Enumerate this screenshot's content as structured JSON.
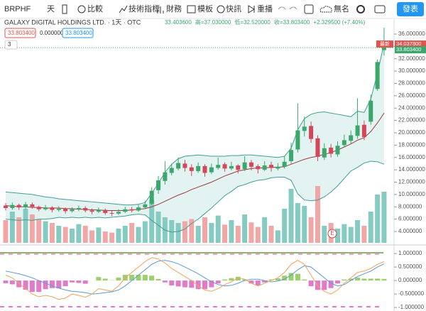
{
  "toolbar": {
    "symbol": "BRPHF",
    "interval": "天",
    "compare": "比較",
    "indicators": "技術指標",
    "financials": "財務",
    "templates": "模板",
    "alerts": "快訊",
    "replay": "重播",
    "layout_name": "無名",
    "publish": "發表"
  },
  "legend": {
    "title": "GALAXY DIGITAL HOLDINGS LTD. · 1天 · OTC",
    "ohlc": [
      "33.403600",
      "高=37.030000",
      "低=32.520000",
      "收=33.803400",
      "+2.329500 (+7.40%)"
    ],
    "indicator_values": [
      "33.803400",
      "0.000000",
      "33.803400"
    ],
    "collapse": "3"
  },
  "chart_data": [
    {
      "type": "candlestick",
      "up_color": "#3ba76c",
      "down_color": "#d6455a",
      "volume_up_color": "#86cbc2",
      "volume_down_color": "#f2a7a7",
      "open": [
        8.2,
        7.8,
        8.3,
        7.9,
        8.4,
        8.0,
        7.6,
        7.9,
        7.5,
        7.7,
        7.3,
        7.6,
        7.8,
        7.4,
        7.2,
        7.5,
        7.0,
        6.9,
        7.2,
        7.6,
        7.4,
        7.9,
        8.5,
        10.7,
        12.2,
        13.5,
        14.2,
        15.0,
        14.4,
        13.8,
        14.6,
        13.6,
        14.3,
        14.9,
        14.2,
        14.7,
        14.1,
        15.2,
        14.6,
        14.0,
        14.8,
        14.2,
        14.5,
        15.4,
        17.3,
        20.3,
        21.1,
        19.1,
        16.0,
        17.6,
        16.5,
        18.0,
        18.7,
        19.5,
        21.3,
        21.8,
        27.1,
        33.4036
      ],
      "high": [
        8.6,
        8.7,
        8.5,
        8.8,
        8.7,
        8.2,
        8.3,
        8.1,
        8.1,
        7.9,
        7.9,
        8.2,
        8.1,
        7.7,
        7.9,
        7.7,
        7.4,
        7.6,
        8.0,
        8.0,
        8.3,
        9.0,
        11.2,
        13.0,
        15.4,
        15.0,
        16.0,
        15.6,
        14.9,
        15.2,
        14.9,
        15.0,
        16.0,
        15.2,
        15.3,
        14.9,
        16.2,
        15.6,
        14.9,
        15.4,
        15.3,
        15.1,
        16.2,
        18.4,
        24.8,
        22.6,
        21.8,
        19.6,
        18.3,
        18.2,
        18.6,
        19.7,
        20.4,
        25.6,
        22.0,
        26.2,
        31.9,
        37.03
      ],
      "low": [
        7.4,
        7.5,
        7.5,
        7.6,
        7.7,
        7.3,
        7.4,
        7.1,
        7.2,
        6.9,
        7.1,
        7.3,
        7.1,
        6.8,
        7.0,
        6.7,
        6.5,
        6.7,
        7.0,
        7.1,
        7.2,
        7.7,
        8.3,
        10.1,
        11.6,
        13.1,
        13.9,
        13.7,
        13.0,
        13.5,
        12.9,
        13.3,
        14.0,
        13.7,
        13.9,
        13.4,
        13.8,
        13.9,
        13.4,
        13.8,
        13.7,
        13.9,
        14.2,
        15.0,
        16.8,
        19.4,
        18.4,
        15.4,
        15.6,
        16.0,
        16.1,
        17.6,
        18.2,
        19.0,
        18.8,
        21.3,
        26.8,
        32.52
      ],
      "close": [
        7.8,
        8.3,
        7.9,
        8.4,
        8.0,
        7.6,
        7.9,
        7.5,
        7.7,
        7.3,
        7.6,
        7.8,
        7.4,
        7.2,
        7.5,
        7.0,
        6.9,
        7.2,
        7.6,
        7.4,
        7.9,
        8.4,
        10.6,
        12.3,
        13.6,
        14.3,
        15.1,
        14.3,
        13.8,
        14.6,
        13.5,
        14.4,
        14.8,
        14.2,
        14.6,
        14.0,
        15.2,
        14.5,
        14.1,
        14.7,
        14.3,
        14.5,
        15.3,
        17.2,
        20.4,
        21.0,
        19.0,
        16.1,
        17.5,
        16.6,
        17.9,
        18.8,
        19.6,
        21.2,
        19.3,
        25.2,
        31.4739,
        33.8034
      ],
      "volume": [
        40,
        55,
        45,
        60,
        50,
        42,
        38,
        35,
        30,
        28,
        25,
        33,
        30,
        22,
        27,
        20,
        18,
        25,
        30,
        35,
        28,
        38,
        75,
        55,
        45,
        40,
        35,
        38,
        42,
        30,
        45,
        35,
        48,
        32,
        40,
        30,
        50,
        36,
        28,
        45,
        30,
        22,
        60,
        95,
        70,
        65,
        45,
        100,
        30,
        35,
        25,
        33,
        28,
        40,
        30,
        55,
        85,
        90
      ],
      "series": [
        {
          "color": "#3f9f95",
          "values": [
            10.4,
            10.3,
            10.2,
            10.1,
            10.0,
            9.8,
            9.6,
            9.5,
            9.3,
            9.2,
            9.1,
            9.0,
            8.9,
            8.8,
            8.7,
            8.6,
            8.5,
            8.4,
            8.3,
            8.3,
            8.4,
            8.7,
            10.2,
            11.8,
            13.6,
            14.9,
            15.8,
            16.2,
            16.3,
            16.4,
            16.3,
            16.2,
            16.2,
            16.2,
            16.3,
            16.3,
            16.4,
            16.4,
            16.3,
            16.2,
            16.1,
            16.0,
            16.2,
            17.5,
            20.5,
            22.3,
            23.0,
            23.3,
            23.4,
            23.2,
            23.0,
            22.8,
            22.6,
            23.5,
            23.3,
            25.5,
            29.6,
            34.5
          ]
        },
        {
          "color": "#9b3c3c",
          "values": [
            8.2,
            8.1,
            8.0,
            8.0,
            7.9,
            7.9,
            7.8,
            7.8,
            7.8,
            7.7,
            7.7,
            7.6,
            7.6,
            7.5,
            7.5,
            7.4,
            7.4,
            7.4,
            7.4,
            7.5,
            7.6,
            7.7,
            8.0,
            8.4,
            8.9,
            9.4,
            9.9,
            10.3,
            10.8,
            11.2,
            11.6,
            12.0,
            12.5,
            13.0,
            13.4,
            13.8,
            14.0,
            14.2,
            14.3,
            14.3,
            14.4,
            14.4,
            14.5,
            14.9,
            15.3,
            15.7,
            16.0,
            16.2,
            16.5,
            16.8,
            17.2,
            17.7,
            18.2,
            18.8,
            19.2,
            20.2,
            21.6,
            23.2
          ]
        },
        {
          "color": "#3f9f95",
          "values": [
            6.0,
            5.9,
            5.8,
            5.9,
            5.8,
            6.0,
            6.0,
            6.1,
            6.3,
            6.2,
            6.3,
            6.2,
            6.3,
            6.2,
            6.3,
            6.2,
            6.3,
            6.4,
            6.5,
            6.7,
            6.8,
            6.7,
            5.8,
            5.0,
            4.2,
            3.9,
            4.0,
            4.4,
            5.3,
            6.0,
            6.9,
            7.8,
            8.8,
            9.8,
            10.5,
            11.3,
            11.6,
            12.0,
            12.3,
            12.4,
            12.7,
            12.8,
            12.8,
            12.3,
            10.1,
            9.1,
            9.0,
            9.1,
            9.6,
            10.4,
            11.4,
            12.6,
            13.8,
            14.4,
            15.1,
            15.4,
            15.3,
            14.9
          ]
        }
      ],
      "band_fill": "#e3f3f1",
      "ylim": [
        2.16,
        36.69
      ],
      "yticks": [
        {
          "value": 4,
          "label": "4.000000"
        },
        {
          "value": 6,
          "label": "6.000000"
        },
        {
          "value": 8,
          "label": "8.000000"
        },
        {
          "value": 10,
          "label": "10.000000"
        },
        {
          "value": 12,
          "label": "12.000000"
        },
        {
          "value": 14,
          "label": "14.000000"
        },
        {
          "value": 16,
          "label": "16.000000"
        },
        {
          "value": 18,
          "label": "18.000000"
        },
        {
          "value": 20,
          "label": "20.000000"
        },
        {
          "value": 22,
          "label": "22.000000"
        },
        {
          "value": 24,
          "label": "24.000000"
        },
        {
          "value": 26,
          "label": "26.000000"
        },
        {
          "value": 28,
          "label": "28.000000"
        },
        {
          "value": 30,
          "label": "30.000000"
        },
        {
          "value": 32,
          "label": "32.000000"
        },
        {
          "value": 34,
          "label": "34.000000"
        },
        {
          "value": 36,
          "label": "36.000000"
        }
      ],
      "price_tags": [
        {
          "value": 34.0378,
          "label": "34.037800",
          "tag": "最新",
          "color": "#e0534f"
        },
        {
          "value": 33.8034,
          "label": "33.803400",
          "color": "#3ba76c"
        }
      ],
      "event_marker": "E"
    },
    {
      "type": "line",
      "hist_up_color": "#9ccf6e",
      "hist_down_color": "#e07bc9",
      "series": [
        {
          "color": "#5b9bd5",
          "values": [
            0.35,
            0.3,
            0.25,
            0.18,
            0.1,
            0.0,
            -0.1,
            -0.2,
            -0.28,
            -0.35,
            -0.4,
            -0.42,
            -0.45,
            -0.5,
            -0.48,
            -0.45,
            -0.42,
            -0.35,
            -0.2,
            0.0,
            0.2,
            0.4,
            0.6,
            0.72,
            0.75,
            0.7,
            0.62,
            0.5,
            0.38,
            0.25,
            0.1,
            -0.05,
            -0.15,
            -0.2,
            -0.18,
            -0.1,
            0.0,
            0.05,
            0.05,
            0.0,
            -0.05,
            -0.02,
            0.05,
            0.2,
            0.4,
            0.55,
            0.5,
            0.3,
            0.1,
            -0.1,
            -0.2,
            -0.15,
            0.0,
            0.15,
            0.25,
            0.35,
            0.5,
            0.62
          ]
        },
        {
          "color": "#f0a35a",
          "values": [
            0.2,
            0.1,
            -0.1,
            -0.3,
            -0.5,
            -0.6,
            -0.55,
            -0.6,
            -0.7,
            -0.65,
            -0.5,
            -0.55,
            -0.62,
            -0.5,
            -0.3,
            -0.35,
            -0.4,
            -0.2,
            0.1,
            0.3,
            0.5,
            0.7,
            0.85,
            0.8,
            0.65,
            0.45,
            0.3,
            0.15,
            0.0,
            -0.2,
            -0.35,
            -0.4,
            -0.3,
            -0.15,
            -0.05,
            0.1,
            0.05,
            -0.1,
            -0.2,
            -0.1,
            0.0,
            0.1,
            0.3,
            0.6,
            0.75,
            0.6,
            0.2,
            -0.2,
            -0.4,
            -0.5,
            -0.35,
            -0.1,
            0.1,
            0.3,
            0.35,
            0.45,
            0.6,
            0.7
          ]
        }
      ],
      "histogram": [
        -0.1,
        -0.14,
        -0.25,
        -0.34,
        -0.42,
        -0.42,
        -0.32,
        -0.28,
        -0.29,
        -0.21,
        -0.07,
        -0.09,
        -0.12,
        0,
        0.13,
        0.07,
        0.01,
        0.11,
        0.21,
        0.21,
        0.21,
        0.21,
        0.18,
        0.06,
        -0.07,
        -0.18,
        -0.22,
        -0.25,
        -0.27,
        -0.32,
        -0.32,
        -0.25,
        -0.11,
        0.04,
        0.09,
        0.14,
        0.04,
        -0.11,
        -0.18,
        -0.07,
        0.04,
        0.08,
        0.18,
        0.28,
        0.25,
        0.04,
        -0.21,
        -0.35,
        -0.35,
        -0.28,
        -0.11,
        0.04,
        0.07,
        0.11,
        0.07,
        0.07,
        0.07,
        0.06
      ],
      "ylim": [
        -1.13,
        1.24
      ],
      "yticks": [
        {
          "value": 1,
          "label": "1.000000"
        },
        {
          "value": 0.5,
          "label": "0.500000"
        },
        {
          "value": 0,
          "label": "0.000000"
        },
        {
          "value": -0.5,
          "label": "-0.500000"
        },
        {
          "value": -1,
          "label": "-1.000000"
        }
      ]
    }
  ]
}
